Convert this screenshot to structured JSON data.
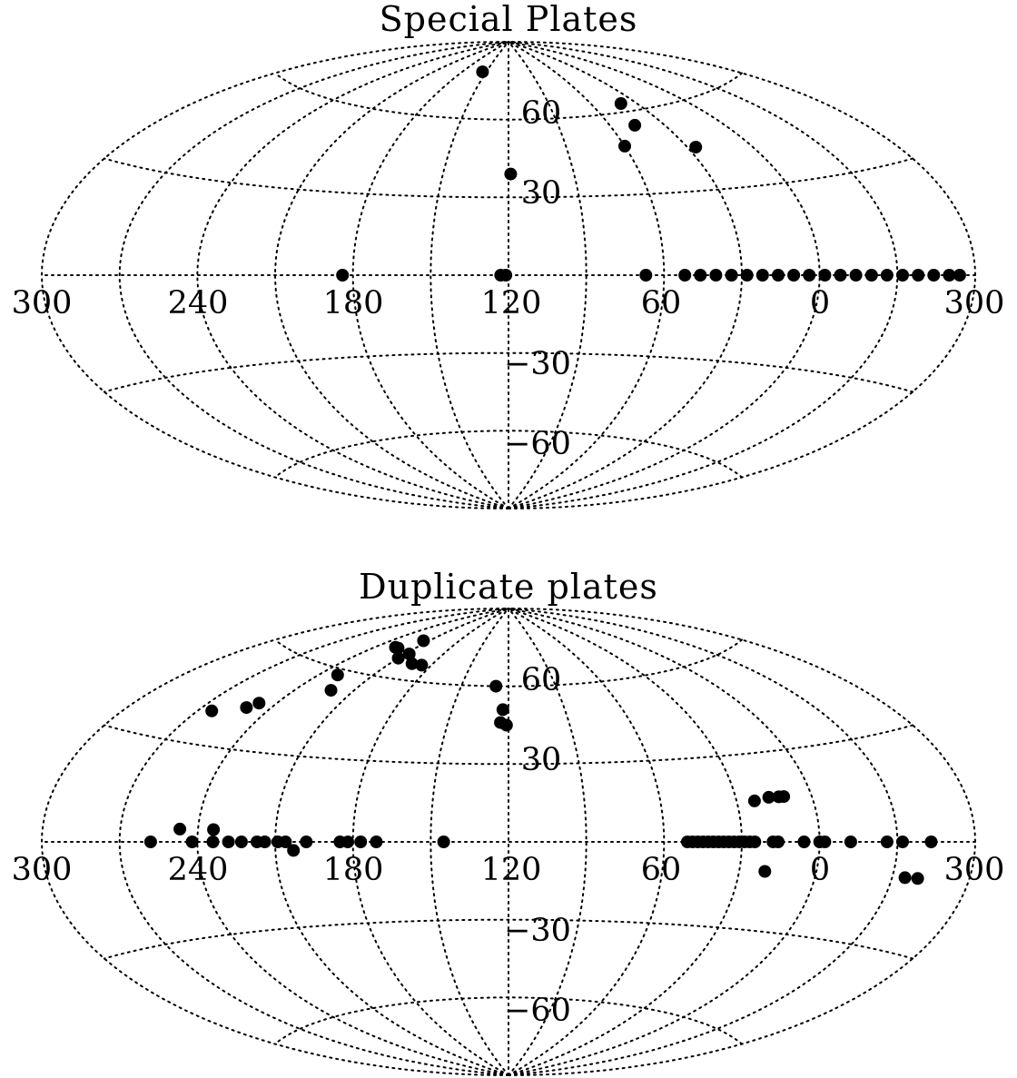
{
  "chart_data": [
    {
      "type": "scatter",
      "projection": "aitoff",
      "title": "Special Plates",
      "xlabel": "",
      "ylabel": "",
      "lon_ticks": [
        "300",
        "240",
        "180",
        "120",
        "60",
        "0",
        "300"
      ],
      "lat_ticks": [
        "60",
        "30",
        "−30",
        "−60"
      ],
      "grid": true,
      "colors": {
        "points": "#000000",
        "grid": "#000000",
        "background": "#ffffff"
      },
      "series": [
        {
          "points": [
            {
              "x": 155,
              "y": 78
            },
            {
              "x": 40,
              "y": 63
            },
            {
              "x": 46,
              "y": 55
            },
            {
              "x": 60,
              "y": 48
            },
            {
              "x": 26,
              "y": 45
            },
            {
              "x": 119,
              "y": 39
            },
            {
              "x": 184,
              "y": 0
            },
            {
              "x": 123,
              "y": 0
            },
            {
              "x": 121,
              "y": 0
            },
            {
              "x": 67,
              "y": 0
            },
            {
              "x": 52,
              "y": 0
            },
            {
              "x": 46,
              "y": 0
            },
            {
              "x": 40,
              "y": 0
            },
            {
              "x": 34,
              "y": 0
            },
            {
              "x": 28,
              "y": 0
            },
            {
              "x": 22,
              "y": 0
            },
            {
              "x": 16,
              "y": 0
            },
            {
              "x": 10,
              "y": 0
            },
            {
              "x": 4,
              "y": 0
            },
            {
              "x": -2,
              "y": 0
            },
            {
              "x": -8,
              "y": 0
            },
            {
              "x": -14,
              "y": 0
            },
            {
              "x": -20,
              "y": 0
            },
            {
              "x": -26,
              "y": 0
            },
            {
              "x": -32,
              "y": 0
            },
            {
              "x": -38,
              "y": 0
            },
            {
              "x": -44,
              "y": 0
            },
            {
              "x": -50,
              "y": 0
            },
            {
              "x": -54,
              "y": 0
            }
          ]
        }
      ]
    },
    {
      "type": "scatter",
      "projection": "aitoff",
      "title": "Duplicate plates",
      "xlabel": "",
      "ylabel": "",
      "lon_ticks": [
        "300",
        "240",
        "180",
        "120",
        "60",
        "0",
        "300"
      ],
      "lat_ticks": [
        "60",
        "30",
        "−30",
        "−60"
      ],
      "grid": true,
      "colors": {
        "points": "#000000",
        "grid": "#000000",
        "background": "#ffffff"
      },
      "series": [
        {
          "points": [
            {
              "x": 215,
              "y": 74
            },
            {
              "x": 223,
              "y": 70
            },
            {
              "x": 226,
              "y": 70
            },
            {
              "x": 207,
              "y": 69
            },
            {
              "x": 195,
              "y": 66
            },
            {
              "x": 187,
              "y": 66
            },
            {
              "x": 210,
              "y": 67
            },
            {
              "x": 230,
              "y": 58
            },
            {
              "x": 222,
              "y": 53
            },
            {
              "x": 248,
              "y": 45
            },
            {
              "x": 251,
              "y": 43
            },
            {
              "x": 264,
              "y": 40
            },
            {
              "x": 128,
              "y": 60
            },
            {
              "x": 123,
              "y": 51
            },
            {
              "x": 124,
              "y": 46
            },
            {
              "x": 121,
              "y": 45
            },
            {
              "x": 23,
              "y": 14
            },
            {
              "x": 17,
              "y": 15
            },
            {
              "x": 13,
              "y": 15
            },
            {
              "x": 11,
              "y": 15
            },
            {
              "x": 258,
              "y": 0
            },
            {
              "x": 247,
              "y": 4
            },
            {
              "x": 242,
              "y": 0
            },
            {
              "x": 234,
              "y": 4
            },
            {
              "x": 234,
              "y": 0
            },
            {
              "x": 228,
              "y": 0
            },
            {
              "x": 223,
              "y": 0
            },
            {
              "x": 217,
              "y": 0
            },
            {
              "x": 214,
              "y": 0
            },
            {
              "x": 209,
              "y": 0
            },
            {
              "x": 206,
              "y": 0
            },
            {
              "x": 203,
              "y": -3
            },
            {
              "x": 198,
              "y": 0
            },
            {
              "x": 185,
              "y": 0
            },
            {
              "x": 182,
              "y": 0
            },
            {
              "x": 177,
              "y": 0
            },
            {
              "x": 171,
              "y": 0
            },
            {
              "x": 145,
              "y": 0
            },
            {
              "x": 51,
              "y": 0
            },
            {
              "x": 49,
              "y": 0
            },
            {
              "x": 47,
              "y": 0
            },
            {
              "x": 45,
              "y": 0
            },
            {
              "x": 43,
              "y": 0
            },
            {
              "x": 41,
              "y": 0
            },
            {
              "x": 39,
              "y": 0
            },
            {
              "x": 37,
              "y": 0
            },
            {
              "x": 35,
              "y": 0
            },
            {
              "x": 33,
              "y": 0
            },
            {
              "x": 31,
              "y": 0
            },
            {
              "x": 29,
              "y": 0
            },
            {
              "x": 27,
              "y": 0
            },
            {
              "x": 25,
              "y": 0
            },
            {
              "x": 18,
              "y": 0
            },
            {
              "x": 16,
              "y": 0
            },
            {
              "x": 6,
              "y": 0
            },
            {
              "x": 0,
              "y": 0
            },
            {
              "x": -2,
              "y": 0
            },
            {
              "x": -12,
              "y": 0
            },
            {
              "x": -26,
              "y": 0
            },
            {
              "x": -32,
              "y": 0
            },
            {
              "x": -43,
              "y": 0
            },
            {
              "x": 20,
              "y": -10
            },
            {
              "x": -35,
              "y": -10
            },
            {
              "x": -40,
              "y": -10
            }
          ]
        }
      ]
    }
  ]
}
